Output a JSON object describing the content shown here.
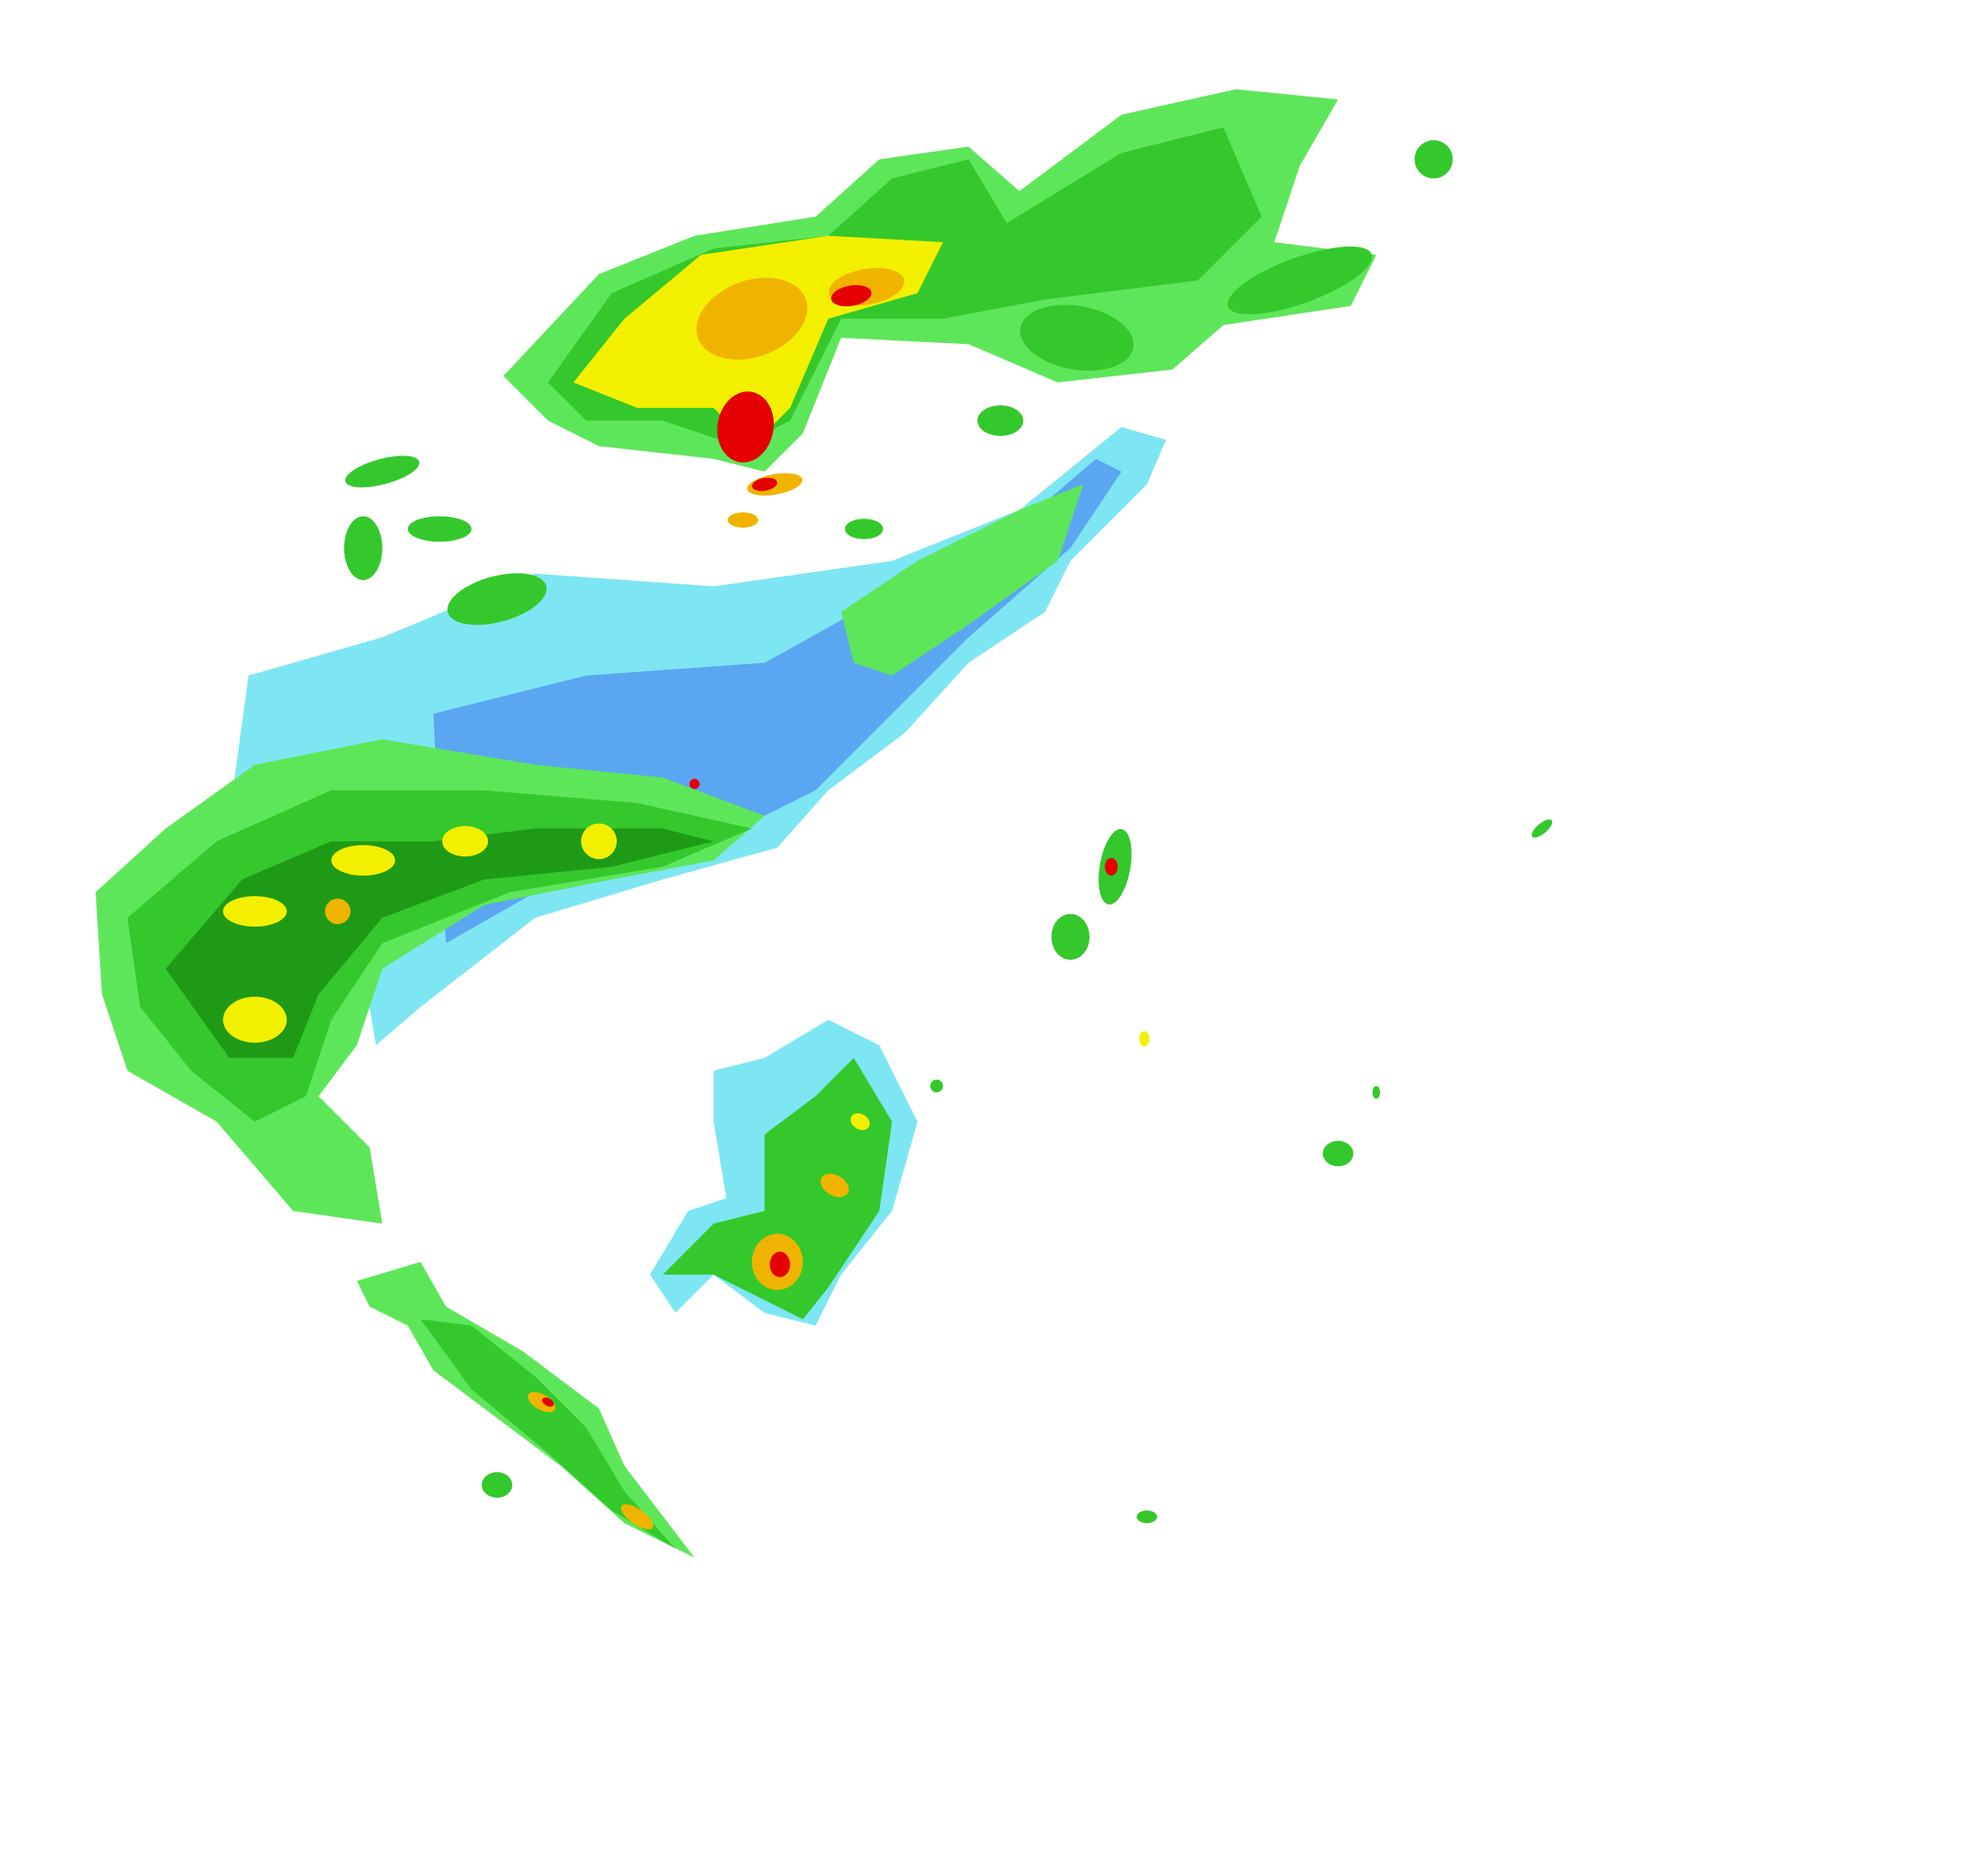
{
  "map": {
    "type": "radar-reflectivity-overlay",
    "background": "#ffffff",
    "palette": {
      "light_blue": "#7ee6f2",
      "blue": "#5aa6f0",
      "light_green": "#5ee65a",
      "green": "#34c82c",
      "dark_green": "#1f9a16",
      "yellow": "#f2f000",
      "orange": "#f0b400",
      "red": "#e40000"
    }
  }
}
